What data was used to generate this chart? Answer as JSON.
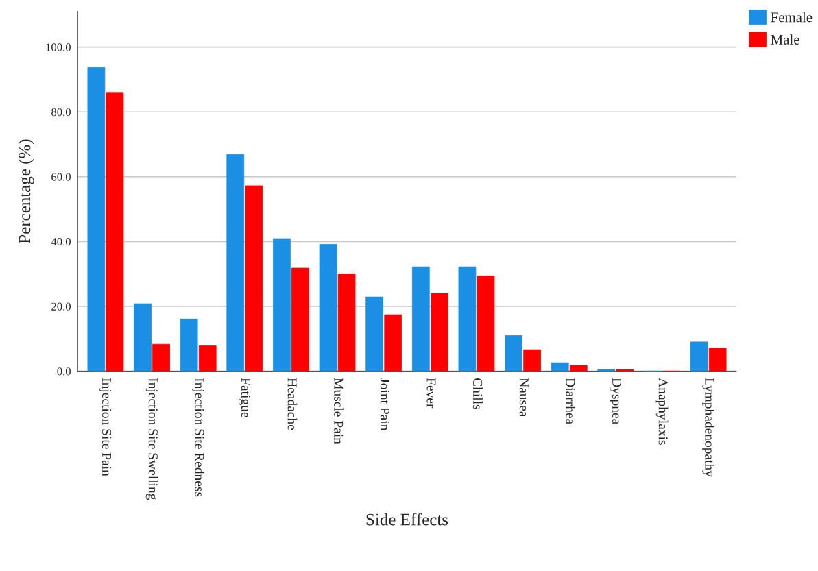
{
  "chart_data": {
    "type": "bar",
    "xlabel": "Side Effects",
    "ylabel": "Percentage (%)",
    "categories": [
      "Injection Site Pain",
      "Injection Site Swelling",
      "Injection Site Redness",
      "Fatigue",
      "Headache",
      "Muscle Pain",
      "Joint Pain",
      "Fever",
      "Chills",
      "Nausea",
      "Diarrhea",
      "Dyspnea",
      "Anaphylaxis",
      "Lymphadenopathy"
    ],
    "series": [
      {
        "name": "Female",
        "color": "#1a8fe3",
        "values": [
          93.7,
          20.8,
          16.1,
          66.9,
          40.9,
          39.1,
          22.9,
          32.2,
          32.2,
          11.0,
          2.6,
          0.6,
          0,
          9.0
        ]
      },
      {
        "name": "Male",
        "color": "#ff0000",
        "values": [
          86.0,
          8.3,
          7.8,
          57.2,
          31.8,
          30.0,
          17.4,
          24.0,
          29.4,
          6.6,
          1.8,
          0.5,
          0,
          7.1
        ]
      }
    ],
    "ylim": [
      0,
      111
    ],
    "yticks": [
      {
        "value": 0,
        "label": "0.0"
      },
      {
        "value": 20,
        "label": "20.0"
      },
      {
        "value": 40,
        "label": "40.0"
      },
      {
        "value": 60,
        "label": "60.0"
      },
      {
        "value": 80,
        "label": "80.0"
      },
      {
        "value": 100,
        "label": "100.0"
      }
    ],
    "grid": "y",
    "legend": "top right"
  }
}
